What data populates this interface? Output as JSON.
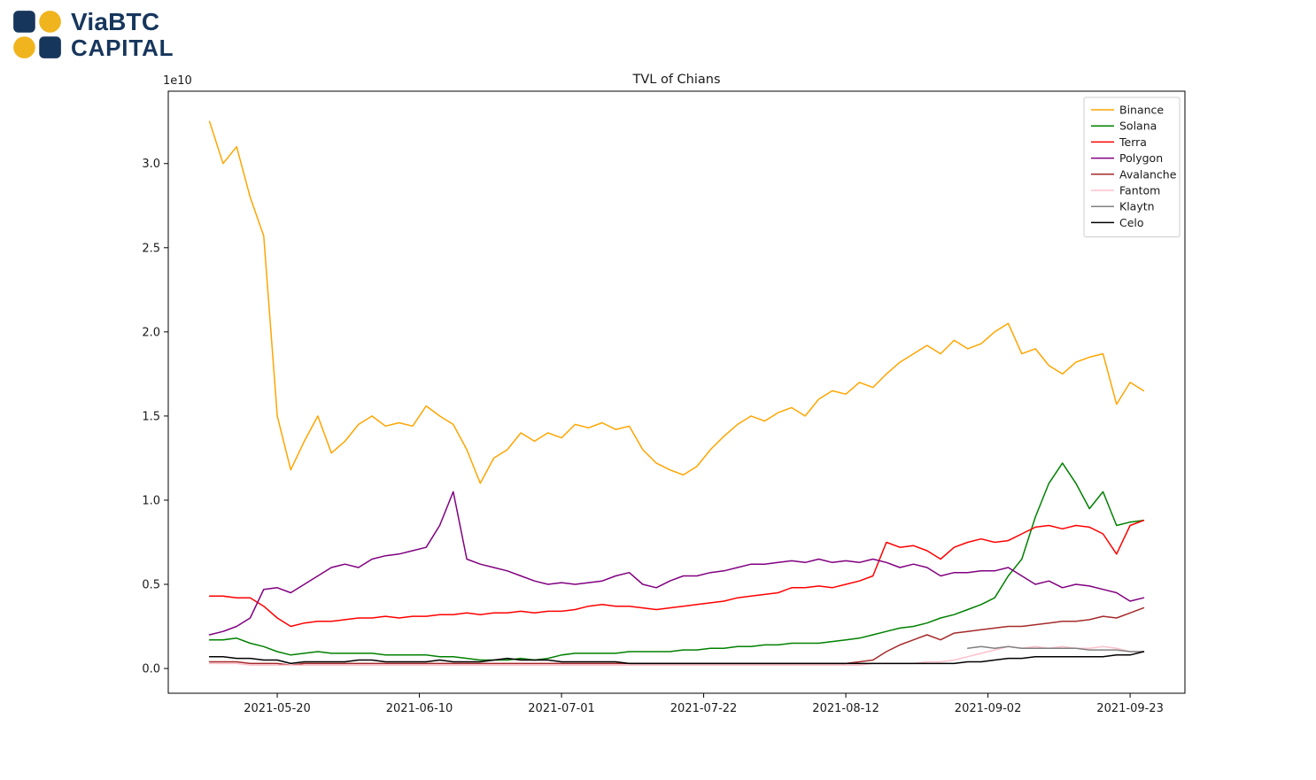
{
  "logo": {
    "line1": "ViaBTC",
    "line2": "CAPITAL",
    "navy_color": "#17365c",
    "gold_color": "#f0b41e"
  },
  "chart_data": {
    "type": "line",
    "title": "TVL of Chians",
    "y_offset_label": "1e10",
    "xlabel": "",
    "ylabel": "",
    "grid": false,
    "legend_position": "upper right",
    "ylim": [
      -0.147,
      3.43
    ],
    "xlim_days": [
      -6.1,
      144.1
    ],
    "y_ticks": [
      0.0,
      0.5,
      1.0,
      1.5,
      2.0,
      2.5,
      3.0
    ],
    "x_ticks": [
      "2021-05-20",
      "2021-06-10",
      "2021-07-01",
      "2021-07-22",
      "2021-08-12",
      "2021-09-02",
      "2021-09-23"
    ],
    "x": [
      "2021-05-10",
      "2021-05-12",
      "2021-05-14",
      "2021-05-16",
      "2021-05-18",
      "2021-05-20",
      "2021-05-22",
      "2021-05-24",
      "2021-05-26",
      "2021-05-28",
      "2021-05-30",
      "2021-06-01",
      "2021-06-03",
      "2021-06-05",
      "2021-06-07",
      "2021-06-09",
      "2021-06-11",
      "2021-06-13",
      "2021-06-15",
      "2021-06-17",
      "2021-06-19",
      "2021-06-21",
      "2021-06-23",
      "2021-06-25",
      "2021-06-27",
      "2021-06-29",
      "2021-07-01",
      "2021-07-03",
      "2021-07-05",
      "2021-07-07",
      "2021-07-09",
      "2021-07-11",
      "2021-07-13",
      "2021-07-15",
      "2021-07-17",
      "2021-07-19",
      "2021-07-21",
      "2021-07-23",
      "2021-07-25",
      "2021-07-27",
      "2021-07-29",
      "2021-07-31",
      "2021-08-02",
      "2021-08-04",
      "2021-08-06",
      "2021-08-08",
      "2021-08-10",
      "2021-08-12",
      "2021-08-14",
      "2021-08-16",
      "2021-08-18",
      "2021-08-20",
      "2021-08-22",
      "2021-08-24",
      "2021-08-26",
      "2021-08-28",
      "2021-08-30",
      "2021-09-01",
      "2021-09-03",
      "2021-09-05",
      "2021-09-07",
      "2021-09-09",
      "2021-09-11",
      "2021-09-13",
      "2021-09-15",
      "2021-09-17",
      "2021-09-19",
      "2021-09-21",
      "2021-09-23",
      "2021-09-25"
    ],
    "series": [
      {
        "name": "Binance",
        "color": "#ffa500",
        "values": [
          3.25,
          3.0,
          3.1,
          2.8,
          2.57,
          1.5,
          1.18,
          1.35,
          1.5,
          1.28,
          1.35,
          1.45,
          1.5,
          1.44,
          1.46,
          1.44,
          1.56,
          1.5,
          1.45,
          1.3,
          1.1,
          1.25,
          1.3,
          1.4,
          1.35,
          1.4,
          1.37,
          1.45,
          1.43,
          1.46,
          1.42,
          1.44,
          1.3,
          1.22,
          1.18,
          1.15,
          1.2,
          1.3,
          1.38,
          1.45,
          1.5,
          1.47,
          1.52,
          1.55,
          1.5,
          1.6,
          1.65,
          1.63,
          1.7,
          1.67,
          1.75,
          1.82,
          1.87,
          1.92,
          1.87,
          1.95,
          1.9,
          1.93,
          2.0,
          2.05,
          1.87,
          1.9,
          1.8,
          1.75,
          1.82,
          1.85,
          1.87,
          1.57,
          1.7,
          1.65
        ]
      },
      {
        "name": "Solana",
        "color": "#008000",
        "values": [
          0.17,
          0.17,
          0.18,
          0.15,
          0.13,
          0.1,
          0.08,
          0.09,
          0.1,
          0.09,
          0.09,
          0.09,
          0.09,
          0.08,
          0.08,
          0.08,
          0.08,
          0.07,
          0.07,
          0.06,
          0.05,
          0.05,
          0.05,
          0.06,
          0.05,
          0.06,
          0.08,
          0.09,
          0.09,
          0.09,
          0.09,
          0.1,
          0.1,
          0.1,
          0.1,
          0.11,
          0.11,
          0.12,
          0.12,
          0.13,
          0.13,
          0.14,
          0.14,
          0.15,
          0.15,
          0.15,
          0.16,
          0.17,
          0.18,
          0.2,
          0.22,
          0.24,
          0.25,
          0.27,
          0.3,
          0.32,
          0.35,
          0.38,
          0.42,
          0.55,
          0.65,
          0.9,
          1.1,
          1.22,
          1.1,
          0.95,
          1.05,
          0.85,
          0.87,
          0.88
        ]
      },
      {
        "name": "Terra",
        "color": "#ff0000",
        "values": [
          0.43,
          0.43,
          0.42,
          0.42,
          0.37,
          0.3,
          0.25,
          0.27,
          0.28,
          0.28,
          0.29,
          0.3,
          0.3,
          0.31,
          0.3,
          0.31,
          0.31,
          0.32,
          0.32,
          0.33,
          0.32,
          0.33,
          0.33,
          0.34,
          0.33,
          0.34,
          0.34,
          0.35,
          0.37,
          0.38,
          0.37,
          0.37,
          0.36,
          0.35,
          0.36,
          0.37,
          0.38,
          0.39,
          0.4,
          0.42,
          0.43,
          0.44,
          0.45,
          0.48,
          0.48,
          0.49,
          0.48,
          0.5,
          0.52,
          0.55,
          0.75,
          0.72,
          0.73,
          0.7,
          0.65,
          0.72,
          0.75,
          0.77,
          0.75,
          0.76,
          0.8,
          0.84,
          0.85,
          0.83,
          0.85,
          0.84,
          0.8,
          0.68,
          0.85,
          0.88
        ]
      },
      {
        "name": "Polygon",
        "color": "#800080",
        "values": [
          0.2,
          0.22,
          0.25,
          0.3,
          0.47,
          0.48,
          0.45,
          0.5,
          0.55,
          0.6,
          0.62,
          0.6,
          0.65,
          0.67,
          0.68,
          0.7,
          0.72,
          0.85,
          1.05,
          0.65,
          0.62,
          0.6,
          0.58,
          0.55,
          0.52,
          0.5,
          0.51,
          0.5,
          0.51,
          0.52,
          0.55,
          0.57,
          0.5,
          0.48,
          0.52,
          0.55,
          0.55,
          0.57,
          0.58,
          0.6,
          0.62,
          0.62,
          0.63,
          0.64,
          0.63,
          0.65,
          0.63,
          0.64,
          0.63,
          0.65,
          0.63,
          0.6,
          0.62,
          0.6,
          0.55,
          0.57,
          0.57,
          0.58,
          0.58,
          0.6,
          0.55,
          0.5,
          0.52,
          0.48,
          0.5,
          0.49,
          0.47,
          0.45,
          0.4,
          0.42
        ]
      },
      {
        "name": "Avalanche",
        "color": "#a52a2a",
        "values": [
          0.04,
          0.04,
          0.04,
          0.03,
          0.03,
          0.03,
          0.02,
          0.03,
          0.03,
          0.03,
          0.03,
          0.03,
          0.03,
          0.03,
          0.03,
          0.03,
          0.03,
          0.03,
          0.03,
          0.03,
          0.03,
          0.03,
          0.03,
          0.03,
          0.03,
          0.03,
          0.03,
          0.03,
          0.03,
          0.03,
          0.03,
          0.03,
          0.03,
          0.03,
          0.03,
          0.03,
          0.03,
          0.03,
          0.03,
          0.03,
          0.03,
          0.03,
          0.03,
          0.03,
          0.03,
          0.03,
          0.03,
          0.03,
          0.04,
          0.05,
          0.1,
          0.14,
          0.17,
          0.2,
          0.17,
          0.21,
          0.22,
          0.23,
          0.24,
          0.25,
          0.25,
          0.26,
          0.27,
          0.28,
          0.28,
          0.29,
          0.31,
          0.3,
          0.33,
          0.36
        ]
      },
      {
        "name": "Fantom",
        "color": "#ffc0cb",
        "values": [
          0.03,
          0.03,
          0.03,
          0.02,
          0.02,
          0.02,
          0.02,
          0.02,
          0.02,
          0.02,
          0.02,
          0.02,
          0.02,
          0.02,
          0.02,
          0.02,
          0.02,
          0.02,
          0.02,
          0.02,
          0.02,
          0.02,
          0.02,
          0.02,
          0.02,
          0.02,
          0.02,
          0.02,
          0.02,
          0.02,
          0.02,
          0.02,
          0.02,
          0.02,
          0.02,
          0.02,
          0.02,
          0.02,
          0.02,
          0.02,
          0.02,
          0.02,
          0.02,
          0.02,
          0.02,
          0.02,
          0.02,
          0.02,
          0.02,
          0.03,
          0.03,
          0.03,
          0.03,
          0.04,
          0.04,
          0.05,
          0.07,
          0.09,
          0.11,
          0.13,
          0.12,
          0.13,
          0.12,
          0.13,
          0.12,
          0.12,
          0.13,
          0.12,
          0.1,
          0.1
        ]
      },
      {
        "name": "Klaytn",
        "color": "#808080",
        "values": [
          null,
          null,
          null,
          null,
          null,
          null,
          null,
          null,
          null,
          null,
          null,
          null,
          null,
          null,
          null,
          null,
          null,
          null,
          null,
          null,
          null,
          null,
          null,
          null,
          null,
          null,
          null,
          null,
          null,
          null,
          null,
          null,
          null,
          null,
          null,
          null,
          null,
          null,
          null,
          null,
          null,
          null,
          null,
          null,
          null,
          null,
          null,
          null,
          null,
          null,
          null,
          null,
          null,
          null,
          null,
          null,
          0.12,
          0.13,
          0.12,
          0.13,
          0.12,
          0.12,
          0.12,
          0.12,
          0.12,
          0.11,
          0.11,
          0.11,
          0.1,
          0.1
        ]
      },
      {
        "name": "Celo",
        "color": "#000000",
        "values": [
          0.07,
          0.07,
          0.06,
          0.06,
          0.05,
          0.05,
          0.03,
          0.04,
          0.04,
          0.04,
          0.04,
          0.05,
          0.05,
          0.04,
          0.04,
          0.04,
          0.04,
          0.05,
          0.04,
          0.04,
          0.04,
          0.05,
          0.06,
          0.05,
          0.05,
          0.05,
          0.04,
          0.04,
          0.04,
          0.04,
          0.04,
          0.03,
          0.03,
          0.03,
          0.03,
          0.03,
          0.03,
          0.03,
          0.03,
          0.03,
          0.03,
          0.03,
          0.03,
          0.03,
          0.03,
          0.03,
          0.03,
          0.03,
          0.03,
          0.03,
          0.03,
          0.03,
          0.03,
          0.03,
          0.03,
          0.03,
          0.04,
          0.04,
          0.05,
          0.06,
          0.06,
          0.07,
          0.07,
          0.07,
          0.07,
          0.07,
          0.07,
          0.08,
          0.08,
          0.1
        ]
      }
    ]
  }
}
